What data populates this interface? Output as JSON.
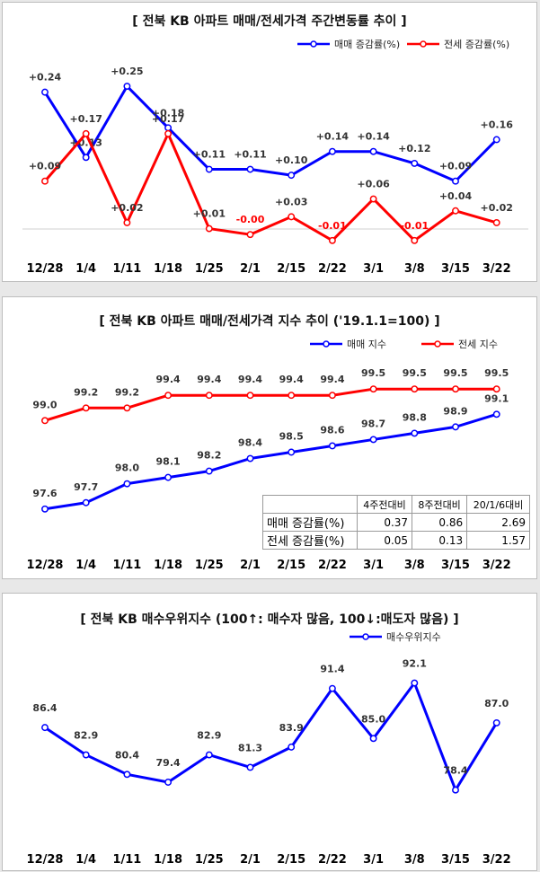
{
  "chart_data": [
    {
      "type": "line",
      "title": "[ 전북  KB 아파트 매매/전세가격 주간변동률 추이 ]",
      "categories": [
        "12/28",
        "1/4",
        "1/11",
        "1/18",
        "1/25",
        "2/1",
        "2/15",
        "2/22",
        "3/1",
        "3/8",
        "3/15",
        "3/22"
      ],
      "series": [
        {
          "name": "매매 증감률(%)",
          "color": "#0000ff",
          "values": [
            0.24,
            0.13,
            0.25,
            0.18,
            0.11,
            0.11,
            0.1,
            0.14,
            0.14,
            0.12,
            0.09,
            0.16
          ],
          "labels": [
            "+0.24",
            "+0.13",
            "+0.25",
            "+0.18",
            "+0.11",
            "+0.11",
            "+0.10",
            "+0.14",
            "+0.14",
            "+0.12",
            "+0.09",
            "+0.16"
          ]
        },
        {
          "name": "전세 증감률(%)",
          "color": "#ff0000",
          "values": [
            0.09,
            0.17,
            0.02,
            0.17,
            0.01,
            -0.0,
            0.03,
            -0.01,
            0.06,
            -0.01,
            0.04,
            0.02
          ],
          "labels": [
            "+0.09",
            "+0.17",
            "+0.02",
            "+0.17",
            "+0.01",
            "-0.00",
            "+0.03",
            "-0.01",
            "+0.06",
            "-0.01",
            "+0.04",
            "+0.02"
          ]
        }
      ],
      "ylim": [
        -0.03,
        0.3
      ],
      "legend": "top-right"
    },
    {
      "type": "line",
      "title": "[ 전북  KB 아파트 매매/전세가격 지수 추이 ('19.1.1=100)  ]",
      "categories": [
        "12/28",
        "1/4",
        "1/11",
        "1/18",
        "1/25",
        "2/1",
        "2/15",
        "2/22",
        "3/1",
        "3/8",
        "3/15",
        "3/22"
      ],
      "series": [
        {
          "name": "매매 지수",
          "color": "#0000ff",
          "values": [
            97.6,
            97.7,
            98.0,
            98.1,
            98.2,
            98.4,
            98.5,
            98.6,
            98.7,
            98.8,
            98.9,
            99.1
          ],
          "labels": [
            "97.6",
            "97.7",
            "98.0",
            "98.1",
            "98.2",
            "98.4",
            "98.5",
            "98.6",
            "98.7",
            "98.8",
            "98.9",
            "99.1"
          ]
        },
        {
          "name": "전세 지수",
          "color": "#ff0000",
          "values": [
            99.0,
            99.2,
            99.2,
            99.4,
            99.4,
            99.4,
            99.4,
            99.4,
            99.5,
            99.5,
            99.5,
            99.5
          ],
          "labels": [
            "99.0",
            "99.2",
            "99.2",
            "99.4",
            "99.4",
            "99.4",
            "99.4",
            "99.4",
            "99.5",
            "99.5",
            "99.5",
            "99.5"
          ]
        }
      ],
      "ylim": [
        96.9,
        100.1
      ],
      "legend": "top-right",
      "table": {
        "headers": [
          "",
          "4주전대비",
          "8주전대비",
          "20/1/6대비"
        ],
        "rows": [
          {
            "label": "매매 증감률(%)",
            "values": [
              "0.37",
              "0.86",
              "2.69"
            ]
          },
          {
            "label": "전세 증감률(%)",
            "values": [
              "0.05",
              "0.13",
              "1.57"
            ]
          }
        ]
      }
    },
    {
      "type": "line",
      "title": "[ 전북  KB 매수우위지수 (100↑: 매수자 많음, 100↓:매도자 많음) ]",
      "categories": [
        "12/28",
        "1/4",
        "1/11",
        "1/18",
        "1/25",
        "2/1",
        "2/15",
        "2/22",
        "3/1",
        "3/8",
        "3/15",
        "3/22"
      ],
      "series": [
        {
          "name": "매수우위지수",
          "color": "#0000ff",
          "values": [
            86.4,
            82.9,
            80.4,
            79.4,
            82.9,
            81.3,
            83.9,
            91.4,
            85.0,
            92.1,
            78.4,
            87.0
          ],
          "labels": [
            "86.4",
            "82.9",
            "80.4",
            "79.4",
            "82.9",
            "81.3",
            "83.9",
            "91.4",
            "85.0",
            "92.1",
            "78.4",
            "87.0"
          ]
        }
      ],
      "ylim": [
        72.5,
        95.5
      ],
      "legend": "top-right"
    }
  ]
}
